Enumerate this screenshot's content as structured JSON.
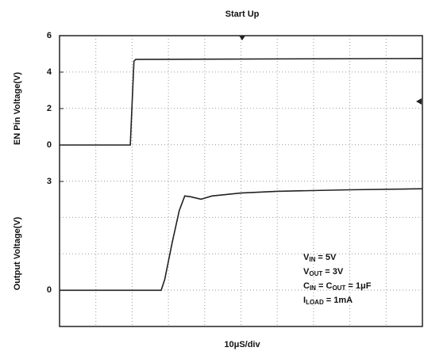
{
  "chart_data": [
    {
      "type": "line",
      "title": "Start Up",
      "ylabel": "EN Pin Voltage(V)",
      "x": [
        0,
        19.5,
        20.5,
        21,
        100
      ],
      "values": [
        0,
        0,
        4.6,
        4.7,
        4.75
      ],
      "xlim": [
        0,
        100
      ],
      "ylim": [
        -2,
        6
      ],
      "yticks": [
        0,
        2,
        4,
        6
      ],
      "color": "#222222"
    },
    {
      "type": "line",
      "ylabel": "Output Voltage(V)",
      "xlabel": "10μS/div",
      "x": [
        0,
        28,
        29,
        31,
        33,
        34.5,
        36,
        39,
        42,
        50,
        60,
        80,
        100
      ],
      "values": [
        0,
        0,
        0.3,
        1.3,
        2.2,
        2.6,
        2.58,
        2.51,
        2.6,
        2.68,
        2.73,
        2.77,
        2.8
      ],
      "xlim": [
        0,
        100
      ],
      "ylim": [
        -1,
        3
      ],
      "yticks": [
        0,
        3
      ],
      "color": "#222222",
      "annotations": [
        [
          {
            "t": "V"
          },
          {
            "t": "IN",
            "sub": true
          },
          {
            "t": " = 5V"
          }
        ],
        [
          {
            "t": "V"
          },
          {
            "t": "OUT",
            "sub": true
          },
          {
            "t": " = 3V"
          }
        ],
        [
          {
            "t": "C"
          },
          {
            "t": "IN",
            "sub": true
          },
          {
            "t": " = C"
          },
          {
            "t": "OUT",
            "sub": true
          },
          {
            "t": " = 1μF"
          }
        ],
        [
          {
            "t": "I"
          },
          {
            "t": "LOAD",
            "sub": true
          },
          {
            "t": " = 1mA"
          }
        ]
      ]
    }
  ]
}
